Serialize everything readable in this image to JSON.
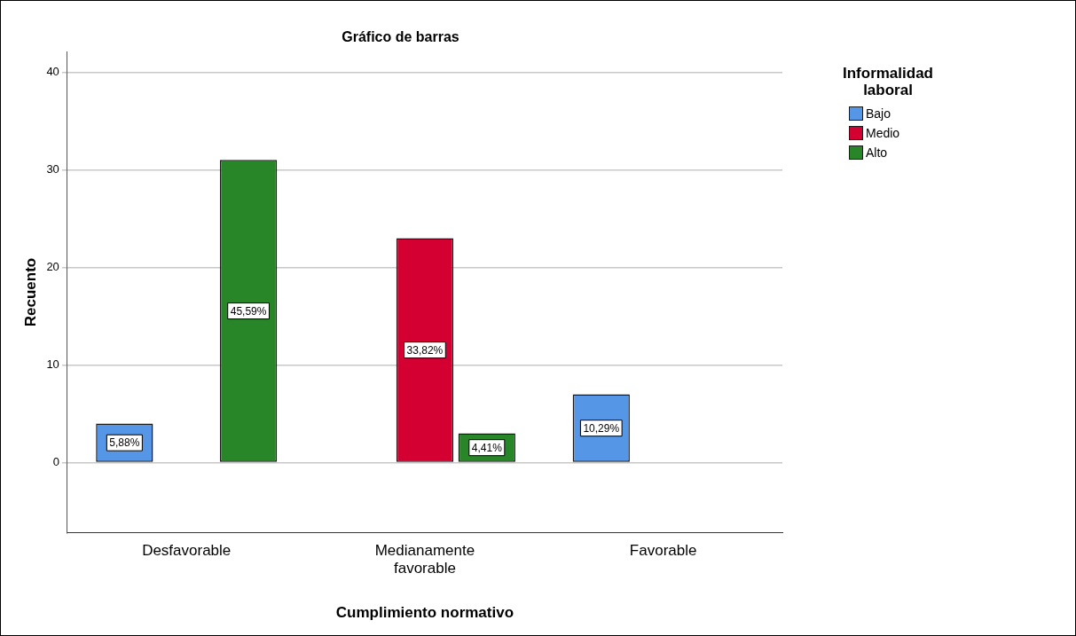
{
  "chart_data": {
    "type": "bar",
    "title": "Gráfico de barras",
    "xlabel": "Cumplimiento normativo",
    "ylabel": "Recuento",
    "legend_title": "Informalidad laboral",
    "categories": [
      "Desfavorable",
      "Medianamente favorable",
      "Favorable"
    ],
    "series": [
      {
        "name": "Bajo",
        "color": "#5596e6",
        "values": [
          4,
          null,
          7
        ]
      },
      {
        "name": "Medio",
        "color": "#d50032",
        "values": [
          null,
          23,
          null
        ]
      },
      {
        "name": "Alto",
        "color": "#288528",
        "values": [
          31,
          3,
          null
        ]
      }
    ],
    "annotations": [
      "5,88%",
      "45,59%",
      "33,82%",
      "4,41%",
      "10,29%"
    ],
    "ylim": [
      -7.2,
      42.1
    ],
    "yticks": [
      0,
      10,
      20,
      30,
      40
    ],
    "grid": "y",
    "legend": "top right"
  }
}
